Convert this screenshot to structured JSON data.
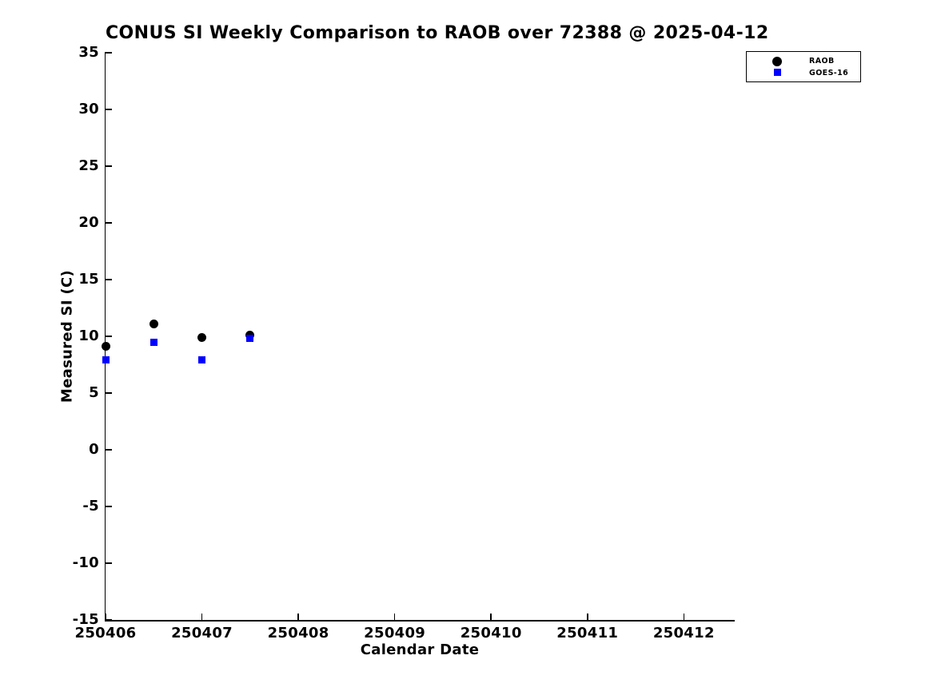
{
  "figure": {
    "background": "#ffffff",
    "text_color": "#000000"
  },
  "chart_data": {
    "type": "scatter",
    "title": "CONUS SI Weekly Comparison to RAOB over 72388 @ 2025-04-12",
    "xlabel": "Calendar Date",
    "ylabel": "Measured SI (C)",
    "xlim": [
      250406,
      250412.52
    ],
    "ylim": [
      -15,
      35
    ],
    "xticks": [
      250406,
      250407,
      250408,
      250409,
      250410,
      250411,
      250412
    ],
    "yticks": [
      35,
      30,
      25,
      20,
      15,
      10,
      5,
      0,
      -5,
      -10,
      -15
    ],
    "grid": false,
    "legend": {
      "position": "top-right",
      "items": [
        {
          "label": "RAOB",
          "marker": "circle",
          "color": "#000000"
        },
        {
          "label": "GOES-16",
          "marker": "square",
          "color": "#0000ff"
        }
      ]
    },
    "series": [
      {
        "name": "RAOB",
        "marker": "circle",
        "color": "#000000",
        "points": [
          [
            250406.0,
            9.1
          ],
          [
            250406.5,
            11.1
          ],
          [
            250407.0,
            9.9
          ],
          [
            250407.5,
            10.1
          ]
        ]
      },
      {
        "name": "GOES-16",
        "marker": "square",
        "color": "#0000ff",
        "points": [
          [
            250406.0,
            7.9
          ],
          [
            250406.5,
            9.5
          ],
          [
            250407.0,
            7.9
          ],
          [
            250407.5,
            9.8
          ]
        ]
      }
    ]
  }
}
